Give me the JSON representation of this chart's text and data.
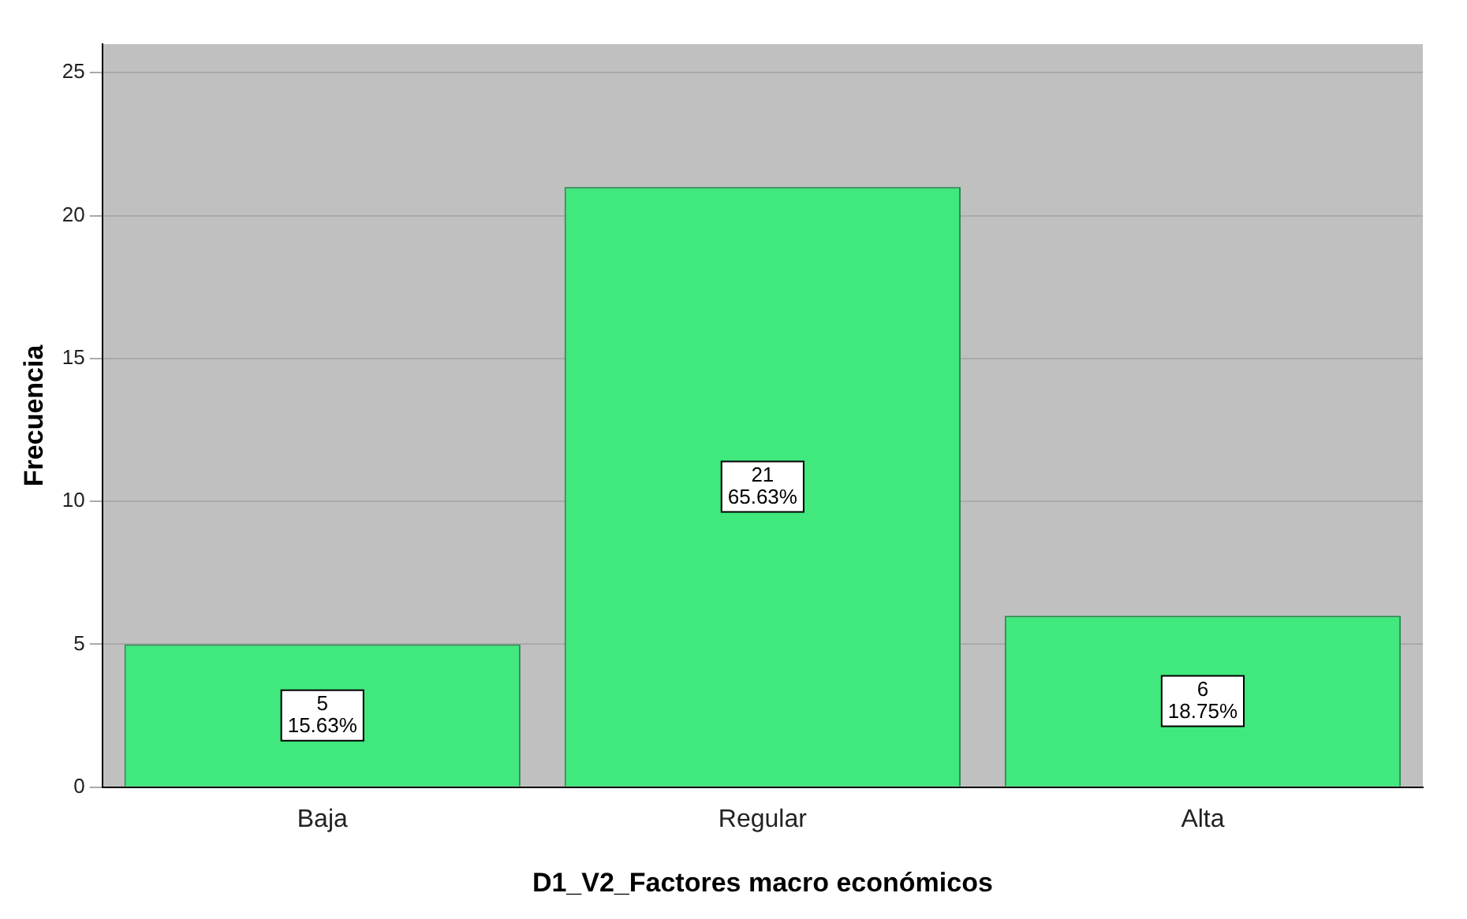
{
  "chart_data": {
    "type": "bar",
    "xlabel": "D1_V2_Factores macro económicos",
    "ylabel": "Frecuencia",
    "categories": [
      "Baja",
      "Regular",
      "Alta"
    ],
    "values": [
      5,
      21,
      6
    ],
    "color": "#40e87e",
    "value_labels": [
      "5\n15.63%",
      "21\n65.63%",
      "6\n18.75%"
    ],
    "ylim": [
      0,
      26
    ],
    "yticks": [
      0,
      5,
      10,
      15,
      20,
      25
    ],
    "grid": "y",
    "legend": false
  }
}
